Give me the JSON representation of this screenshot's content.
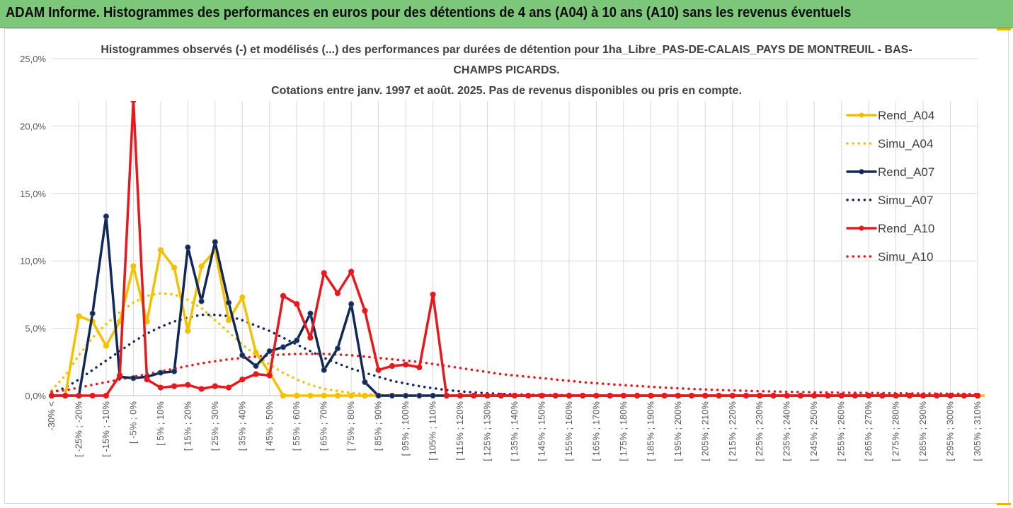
{
  "banner": {
    "title": "ADAM Informe. Histogrammes des performances en euros pour des détentions de 4 ans (A04) à 10 ans (A10) sans les revenus éventuels"
  },
  "colors": {
    "A04": "#f5c000",
    "A07": "#10285a",
    "A10": "#e8181c",
    "banner": "#7dc77a",
    "grid": "#d9d9d9",
    "axisText": "#595959"
  },
  "chart_data": {
    "type": "line",
    "title_lines": [
      "Histogrammes observés (-) et modélisés (...) des performances par durées de détention pour 1ha_Libre_PAS-DE-CALAIS_PAYS DE MONTREUIL - BAS-",
      "CHAMPS PICARDS.",
      "Cotations entre janv. 1997 et août. 2025. Pas de revenus disponibles ou pris en compte."
    ],
    "y_ticks": [
      "0,0%",
      "5,0%",
      "10,0%",
      "15,0%",
      "20,0%",
      "25,0%"
    ],
    "ylim": [
      0,
      25
    ],
    "grid": true,
    "legend_position": "right",
    "x_labels": [
      "-30% <",
      "[ -25% ; -20%",
      "[ -15% ; -10%",
      "[ -5% ; 0%",
      "[ 5% ; 10%",
      "[ 15% ; 20%",
      "[ 25% ; 30%",
      "[ 35% ; 40%",
      "[ 45% ; 50%",
      "[ 55% ; 60%",
      "[ 65% ; 70%",
      "[ 75% ; 80%",
      "[ 85% ; 90%",
      "[ 95% ; 100%",
      "[ 105% ; 110%",
      "[ 115% ; 120%",
      "[ 125% ; 130%",
      "[ 135% ; 140%",
      "[ 145% ; 150%",
      "[ 155% ; 160%",
      "[ 165% ; 170%",
      "[ 175% ; 180%",
      "[ 185% ; 190%",
      "[ 195% ; 200%",
      "[ 205% ; 210%",
      "[ 215% ; 220%",
      "[ 225% ; 230%",
      "[ 235% ; 240%",
      "[ 245% ; 250%",
      "[ 255% ; 260%",
      "[ 265% ; 270%",
      "[ 275% ; 280%",
      "[ 285% ; 290%",
      "[ 295% ; 300%",
      "[ 305% ; 310%"
    ],
    "series": [
      {
        "name": "Rend_A04",
        "style": "solid",
        "color": "#f5c000",
        "values": [
          0,
          0,
          5.9,
          5.5,
          3.7,
          5.5,
          9.6,
          5.5,
          10.8,
          9.5,
          4.8,
          9.6,
          10.8,
          5.6,
          7.3,
          3.2,
          1.7,
          0,
          0,
          0,
          0,
          0,
          0,
          0,
          0,
          0,
          0,
          0,
          0,
          0,
          0,
          0,
          0,
          0,
          0,
          0,
          0,
          0,
          0,
          0,
          0,
          0,
          0,
          0,
          0,
          0,
          0,
          0,
          0,
          0,
          0,
          0,
          0,
          0,
          0,
          0,
          0,
          0,
          0,
          0,
          0,
          0,
          0,
          0,
          0,
          0,
          0,
          0,
          0,
          0,
          0
        ]
      },
      {
        "name": "Simu_A04",
        "style": "dotted",
        "color": "#f5c000",
        "values": [
          0.4,
          1.5,
          3.0,
          4.3,
          5.3,
          6.2,
          6.9,
          7.4,
          7.6,
          7.5,
          7.1,
          6.5,
          5.6,
          4.7,
          3.8,
          3.0,
          2.3,
          1.7,
          1.2,
          0.8,
          0.5,
          0.35,
          0.2,
          0.12,
          0.07,
          0.04,
          0.02,
          0.01,
          0,
          0,
          0,
          0,
          0,
          0,
          0,
          0,
          0,
          0,
          0,
          0,
          0,
          0,
          0,
          0,
          0,
          0,
          0,
          0,
          0,
          0,
          0,
          0,
          0,
          0,
          0,
          0,
          0,
          0,
          0,
          0,
          0,
          0,
          0,
          0,
          0,
          0,
          0,
          0,
          0
        ]
      },
      {
        "name": "Rend_A07",
        "style": "solid",
        "color": "#10285a",
        "values": [
          0,
          0,
          0,
          6.1,
          13.3,
          1.4,
          1.3,
          1.4,
          1.7,
          1.8,
          11.0,
          7.0,
          11.4,
          6.9,
          3.0,
          2.2,
          3.3,
          3.6,
          4.1,
          6.1,
          1.9,
          3.5,
          6.8,
          1.0,
          0,
          0,
          0,
          0,
          0,
          0,
          0,
          0,
          0,
          0,
          0,
          0,
          0,
          0,
          0,
          0,
          0,
          0,
          0,
          0,
          0,
          0,
          0,
          0,
          0,
          0,
          0,
          0,
          0,
          0,
          0,
          0,
          0,
          0,
          0,
          0,
          0,
          0,
          0,
          0,
          0,
          0,
          0,
          0,
          0
        ]
      },
      {
        "name": "Simu_A07",
        "style": "dotted",
        "color": "#10285a",
        "values": [
          0.2,
          0.6,
          1.2,
          1.9,
          2.6,
          3.3,
          4.0,
          4.6,
          5.1,
          5.5,
          5.8,
          6.0,
          6.0,
          5.9,
          5.6,
          5.2,
          4.8,
          4.3,
          3.8,
          3.3,
          2.8,
          2.4,
          2.0,
          1.7,
          1.4,
          1.1,
          0.9,
          0.7,
          0.55,
          0.42,
          0.32,
          0.24,
          0.18,
          0.13,
          0.1,
          0.07,
          0.05,
          0.04,
          0.03,
          0.02,
          0.01,
          0.01,
          0,
          0,
          0,
          0,
          0,
          0,
          0,
          0,
          0,
          0,
          0,
          0,
          0,
          0,
          0,
          0,
          0,
          0,
          0,
          0,
          0,
          0,
          0,
          0,
          0,
          0,
          0
        ]
      },
      {
        "name": "Rend_A10",
        "style": "solid",
        "color": "#e8181c",
        "values": [
          0,
          0,
          0,
          0,
          0,
          1.5,
          21.9,
          1.2,
          0.6,
          0.7,
          0.8,
          0.5,
          0.7,
          0.6,
          1.2,
          1.6,
          1.5,
          7.4,
          6.8,
          4.3,
          9.1,
          7.6,
          9.2,
          6.3,
          1.9,
          2.2,
          2.3,
          2.1,
          7.5,
          0,
          0,
          0,
          0,
          0,
          0,
          0,
          0,
          0,
          0,
          0,
          0,
          0,
          0,
          0,
          0,
          0,
          0,
          0,
          0,
          0,
          0,
          0,
          0,
          0,
          0,
          0,
          0,
          0,
          0,
          0,
          0,
          0,
          0,
          0,
          0,
          0,
          0,
          0,
          0
        ]
      },
      {
        "name": "Simu_A10",
        "style": "dotted",
        "color": "#e8181c",
        "values": [
          0.3,
          0.4,
          0.6,
          0.8,
          1.0,
          1.2,
          1.4,
          1.6,
          1.8,
          2.0,
          2.2,
          2.4,
          2.55,
          2.7,
          2.8,
          2.9,
          3.0,
          3.05,
          3.1,
          3.1,
          3.1,
          3.05,
          3.0,
          2.9,
          2.8,
          2.7,
          2.6,
          2.5,
          2.35,
          2.2,
          2.05,
          1.9,
          1.75,
          1.6,
          1.5,
          1.4,
          1.3,
          1.2,
          1.1,
          1.0,
          0.92,
          0.85,
          0.78,
          0.72,
          0.66,
          0.6,
          0.55,
          0.5,
          0.46,
          0.42,
          0.39,
          0.36,
          0.33,
          0.31,
          0.29,
          0.27,
          0.25,
          0.24,
          0.22,
          0.21,
          0.2,
          0.19,
          0.18,
          0.17,
          0.16,
          0.15,
          0.14,
          0.13,
          0.12
        ]
      }
    ]
  }
}
